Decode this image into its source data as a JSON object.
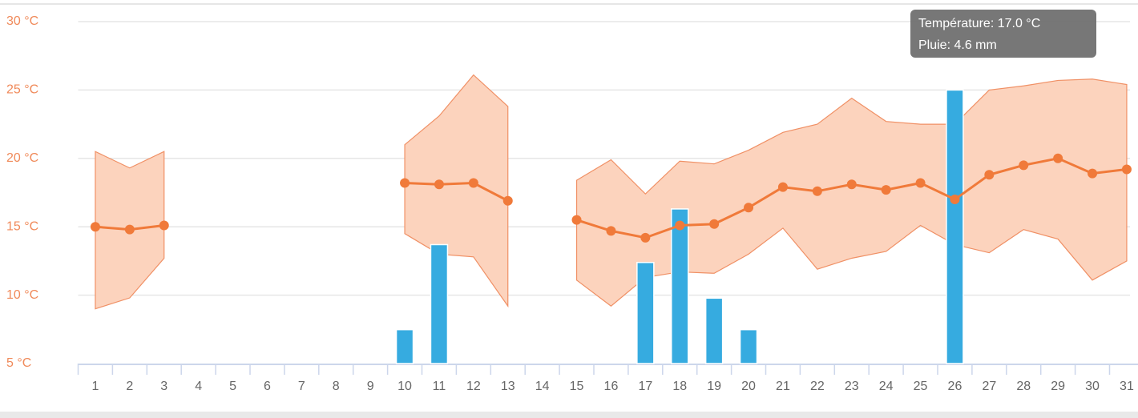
{
  "chart_data": {
    "type": "line-range-bar",
    "categories": [
      "1",
      "2",
      "3",
      "4",
      "5",
      "6",
      "7",
      "8",
      "9",
      "10",
      "11",
      "12",
      "13",
      "14",
      "15",
      "16",
      "17",
      "18",
      "19",
      "20",
      "21",
      "22",
      "23",
      "24",
      "25",
      "26",
      "27",
      "28",
      "29",
      "30",
      "31"
    ],
    "ylim": [
      5,
      30
    ],
    "yticks": [
      {
        "value": 5,
        "label": "5 °C"
      },
      {
        "value": 10,
        "label": "10 °C"
      },
      {
        "value": 15,
        "label": "15 °C"
      },
      {
        "value": 20,
        "label": "20 °C"
      },
      {
        "value": 25,
        "label": "25 °C"
      },
      {
        "value": 30,
        "label": "30 °C"
      }
    ],
    "y2lim": [
      0,
      5.75
    ],
    "grid": true,
    "series": [
      {
        "type": "line",
        "color": "#f07a3a",
        "band_color": "#fcd3bd",
        "band_stroke": "#f09065",
        "values": [
          15.0,
          14.8,
          15.1,
          null,
          null,
          null,
          null,
          null,
          null,
          18.2,
          18.1,
          18.2,
          16.9,
          null,
          15.5,
          14.7,
          14.2,
          15.1,
          15.2,
          16.4,
          17.9,
          17.6,
          18.1,
          17.7,
          18.2,
          17.0,
          18.8,
          19.5,
          20.0,
          18.9,
          19.2
        ],
        "high": [
          20.5,
          19.3,
          20.5,
          null,
          null,
          null,
          null,
          null,
          null,
          21.0,
          23.1,
          26.1,
          23.8,
          null,
          18.4,
          19.9,
          17.4,
          19.8,
          19.6,
          20.6,
          21.9,
          22.5,
          24.4,
          22.7,
          22.5,
          22.5,
          25.0,
          25.3,
          25.7,
          25.8,
          25.4
        ],
        "low": [
          9.0,
          9.8,
          12.7,
          null,
          null,
          null,
          null,
          null,
          null,
          14.5,
          13.0,
          12.8,
          9.2,
          null,
          11.1,
          9.2,
          11.3,
          11.7,
          11.6,
          13.0,
          14.9,
          11.9,
          12.7,
          13.2,
          15.1,
          13.7,
          13.1,
          14.8,
          14.1,
          11.1,
          12.5
        ]
      },
      {
        "type": "bar",
        "axis": "y2",
        "color": "#36abe0",
        "values": [
          0,
          0,
          0,
          0,
          0,
          0,
          0,
          0,
          0,
          0.57,
          2.0,
          0,
          0,
          0,
          0,
          0,
          1.7,
          2.6,
          1.1,
          0.57,
          0,
          0,
          0,
          0,
          0,
          4.6,
          0,
          0,
          0,
          0,
          0
        ]
      }
    ],
    "tooltip": {
      "index": 25,
      "lines": [
        "Température: 17.0 °C",
        "Pluie: 4.6 mm"
      ]
    }
  }
}
